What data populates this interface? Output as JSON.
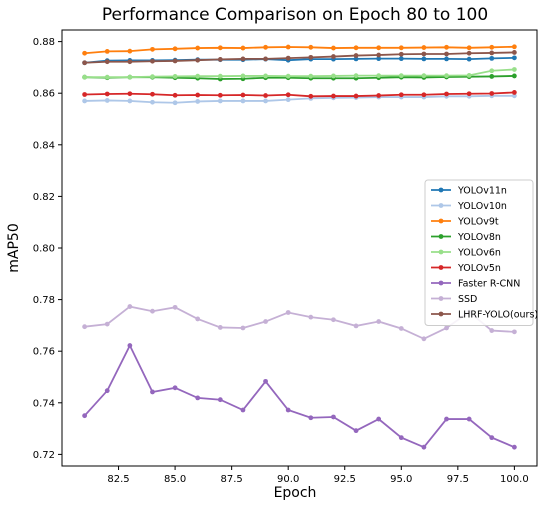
{
  "chart_data": {
    "type": "line",
    "title": "Performance Comparison on Epoch 80 to 100",
    "xlabel": "Epoch",
    "ylabel": "mAP50",
    "xlim": [
      80.0,
      101.0
    ],
    "ylim": [
      0.7155,
      0.8845
    ],
    "x_ticks": [
      82.5,
      85.0,
      87.5,
      90.0,
      92.5,
      95.0,
      97.5,
      100.0
    ],
    "x_tick_labels": [
      "82.5",
      "85.0",
      "87.5",
      "90.0",
      "92.5",
      "95.0",
      "97.5",
      "100.0"
    ],
    "y_ticks": [
      0.72,
      0.74,
      0.76,
      0.78,
      0.8,
      0.82,
      0.84,
      0.86,
      0.88
    ],
    "y_tick_labels": [
      "0.72",
      "0.74",
      "0.76",
      "0.78",
      "0.80",
      "0.82",
      "0.84",
      "0.86",
      "0.88"
    ],
    "grid": false,
    "legend_position": "center-right",
    "x": [
      81,
      82,
      83,
      84,
      85,
      86,
      87,
      88,
      89,
      90,
      91,
      92,
      93,
      94,
      95,
      96,
      97,
      98,
      99,
      100
    ],
    "series": [
      {
        "name": "YOLOv11n",
        "color": "#1f77b4",
        "values": [
          0.8718,
          0.8726,
          0.8727,
          0.8727,
          0.8728,
          0.873,
          0.873,
          0.873,
          0.8732,
          0.8728,
          0.8732,
          0.8732,
          0.8733,
          0.8734,
          0.8734,
          0.8733,
          0.8733,
          0.8732,
          0.8735,
          0.8737
        ]
      },
      {
        "name": "YOLOv10n",
        "color": "#aec7e8",
        "values": [
          0.857,
          0.8572,
          0.857,
          0.8565,
          0.8563,
          0.8568,
          0.857,
          0.857,
          0.857,
          0.8575,
          0.858,
          0.8582,
          0.8583,
          0.8585,
          0.8585,
          0.8585,
          0.8588,
          0.8588,
          0.859,
          0.859
        ]
      },
      {
        "name": "YOLOv9t",
        "color": "#ff7f0e",
        "values": [
          0.8755,
          0.8762,
          0.8763,
          0.877,
          0.8772,
          0.8775,
          0.8776,
          0.8775,
          0.8778,
          0.8779,
          0.8778,
          0.8775,
          0.8776,
          0.8776,
          0.8776,
          0.8777,
          0.8778,
          0.8776,
          0.8778,
          0.878
        ]
      },
      {
        "name": "YOLOv8n",
        "color": "#2ca02c",
        "values": [
          0.8662,
          0.866,
          0.8662,
          0.8662,
          0.866,
          0.8658,
          0.8655,
          0.8656,
          0.866,
          0.866,
          0.8658,
          0.8658,
          0.8658,
          0.866,
          0.8662,
          0.8661,
          0.8663,
          0.8664,
          0.8665,
          0.8667
        ]
      },
      {
        "name": "YOLOv6n",
        "color": "#98df8a",
        "values": [
          0.8662,
          0.8662,
          0.8662,
          0.8664,
          0.8665,
          0.8666,
          0.8666,
          0.8667,
          0.8667,
          0.8666,
          0.8666,
          0.8667,
          0.8668,
          0.8668,
          0.8668,
          0.8668,
          0.8668,
          0.8669,
          0.8687,
          0.8692
        ]
      },
      {
        "name": "YOLOv5n",
        "color": "#d62728",
        "values": [
          0.8595,
          0.8597,
          0.8598,
          0.8596,
          0.8592,
          0.8593,
          0.8592,
          0.8593,
          0.8591,
          0.8594,
          0.8588,
          0.8589,
          0.8589,
          0.8591,
          0.8594,
          0.8594,
          0.8597,
          0.8598,
          0.8599,
          0.8603
        ]
      },
      {
        "name": "Faster R-CNN",
        "color": "#9467bd",
        "values": [
          0.735,
          0.7447,
          0.7622,
          0.7442,
          0.7458,
          0.7419,
          0.7412,
          0.7372,
          0.7483,
          0.7372,
          0.7342,
          0.7345,
          0.7292,
          0.7337,
          0.7265,
          0.7228,
          0.7337,
          0.7337,
          0.7265,
          0.7228
        ]
      },
      {
        "name": "SSD",
        "color": "#c5b0d5",
        "values": [
          0.7695,
          0.7705,
          0.7773,
          0.7755,
          0.777,
          0.7725,
          0.7692,
          0.769,
          0.7715,
          0.775,
          0.7732,
          0.7722,
          0.7698,
          0.7715,
          0.7688,
          0.7648,
          0.769,
          0.7752,
          0.768,
          0.7675
        ]
      },
      {
        "name": "LHRF-YOLO(ours)",
        "color": "#8c564b",
        "values": [
          0.8718,
          0.8722,
          0.8722,
          0.8724,
          0.8725,
          0.8728,
          0.8731,
          0.8733,
          0.8733,
          0.8736,
          0.8739,
          0.8742,
          0.8746,
          0.8748,
          0.8751,
          0.8752,
          0.8752,
          0.8755,
          0.8756,
          0.8758
        ]
      }
    ]
  }
}
